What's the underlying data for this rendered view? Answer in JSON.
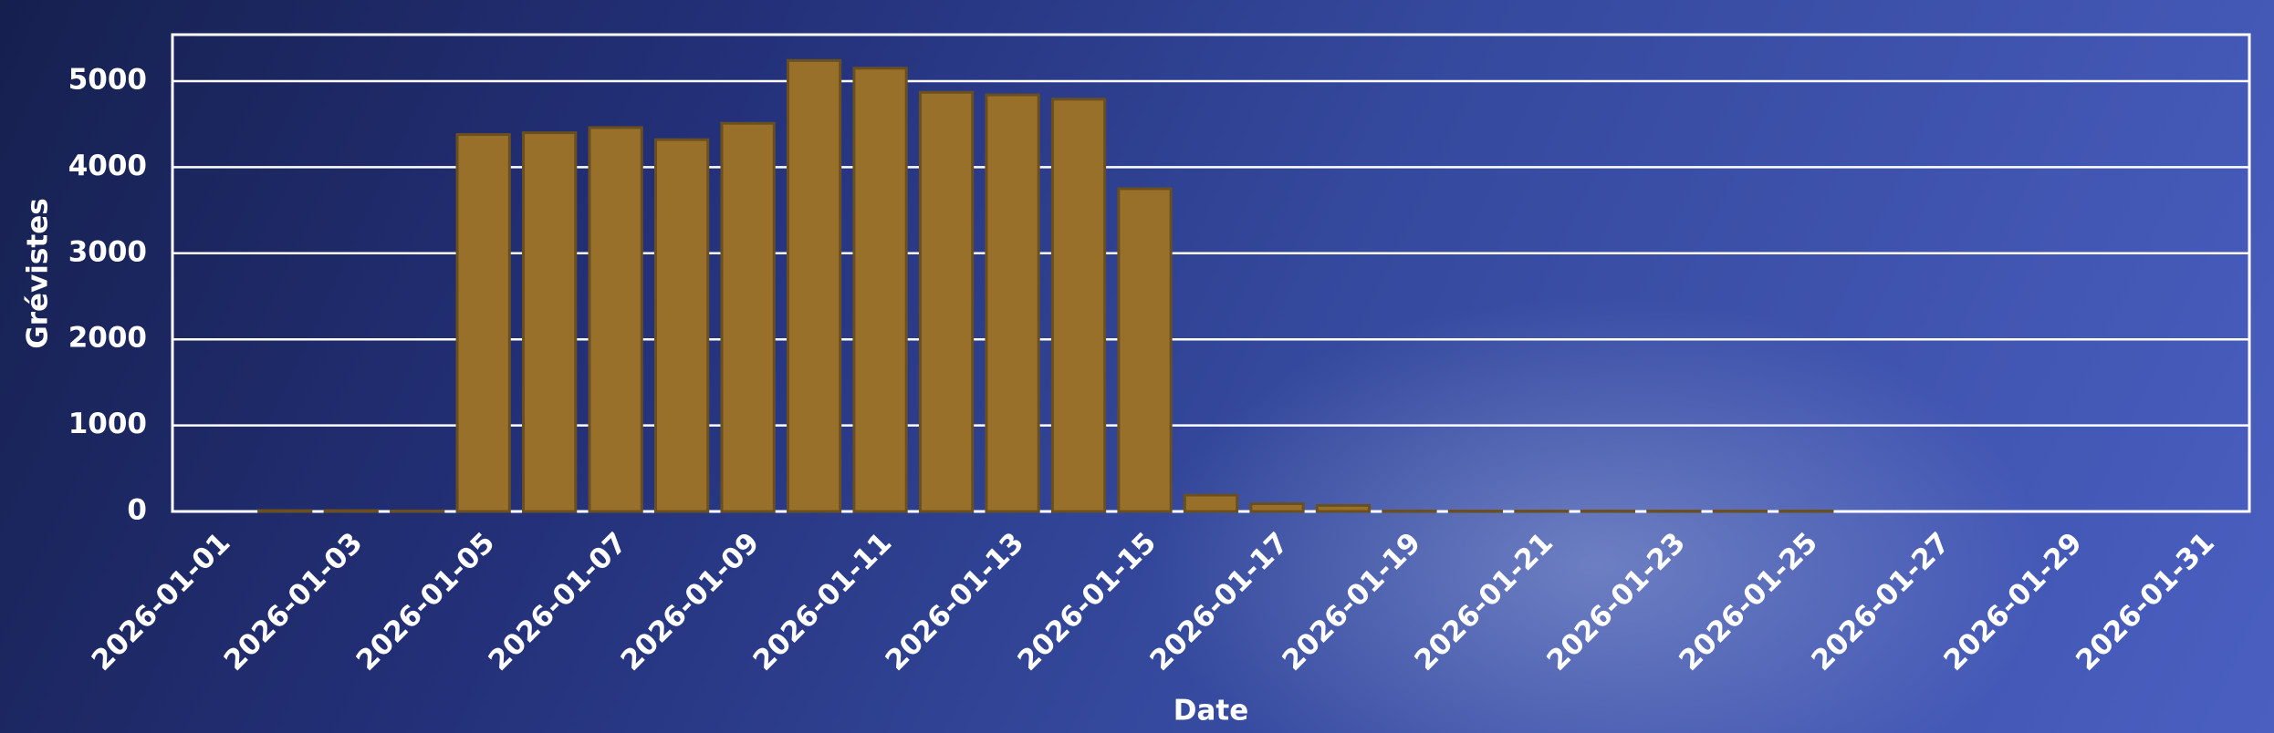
{
  "chart_data": {
    "type": "bar",
    "x": [
      "2026-01-01",
      "2026-01-02",
      "2026-01-03",
      "2026-01-04",
      "2026-01-05",
      "2026-01-06",
      "2026-01-07",
      "2026-01-08",
      "2026-01-09",
      "2026-01-10",
      "2026-01-11",
      "2026-01-12",
      "2026-01-13",
      "2026-01-14",
      "2026-01-15",
      "2026-01-16",
      "2026-01-17",
      "2026-01-18",
      "2026-01-19",
      "2026-01-20",
      "2026-01-21",
      "2026-01-22",
      "2026-01-23",
      "2026-01-24",
      "2026-01-25",
      "2026-01-26",
      "2026-01-27",
      "2026-01-28",
      "2026-01-29",
      "2026-01-30",
      "2026-01-31"
    ],
    "values": [
      0,
      10,
      10,
      5,
      4380,
      4400,
      4460,
      4320,
      4510,
      5240,
      5150,
      4870,
      4840,
      4790,
      3750,
      190,
      90,
      70,
      5,
      5,
      5,
      5,
      5,
      5,
      5,
      0,
      0,
      0,
      0,
      0,
      0
    ],
    "xticks": [
      "2026-01-01",
      "2026-01-03",
      "2026-01-05",
      "2026-01-07",
      "2026-01-09",
      "2026-01-11",
      "2026-01-13",
      "2026-01-15",
      "2026-01-17",
      "2026-01-19",
      "2026-01-21",
      "2026-01-23",
      "2026-01-25",
      "2026-01-27",
      "2026-01-29",
      "2026-01-31"
    ],
    "ylim": [
      0,
      5540
    ],
    "yticks": [
      0,
      1000,
      2000,
      3000,
      4000,
      5000
    ],
    "xlabel": "Date",
    "ylabel": "Grévistes",
    "color": "#98702a",
    "grid": true
  }
}
